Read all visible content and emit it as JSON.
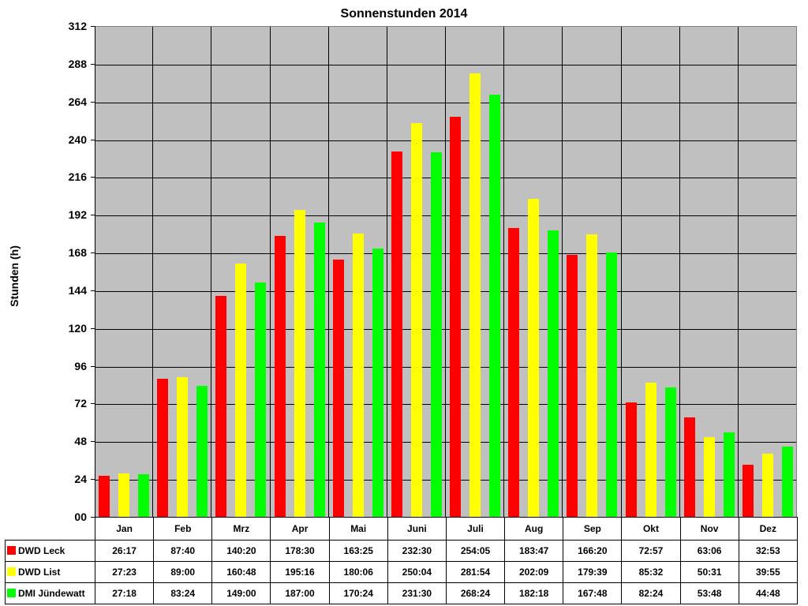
{
  "chart_data": {
    "type": "bar",
    "title": "Sonnenstunden 2014",
    "xlabel": "",
    "ylabel": "Stunden (h)",
    "ylim": [
      0,
      312
    ],
    "yticks": [
      "00",
      "24",
      "48",
      "72",
      "96",
      "120",
      "144",
      "168",
      "192",
      "216",
      "240",
      "264",
      "288",
      "312"
    ],
    "grid": true,
    "legend_position": "data-table-left",
    "categories": [
      "Jan",
      "Feb",
      "Mrz",
      "Apr",
      "Mai",
      "Juni",
      "Juli",
      "Aug",
      "Sep",
      "Okt",
      "Nov",
      "Dez"
    ],
    "series": [
      {
        "name": "DWD Leck",
        "color": "#ff0000",
        "labels": [
          "26:17",
          "87:40",
          "140:20",
          "178:30",
          "163:25",
          "232:30",
          "254:05",
          "183:47",
          "166:20",
          "72:57",
          "63:06",
          "32:53"
        ],
        "values": [
          26.28,
          87.67,
          140.33,
          178.5,
          163.42,
          232.5,
          254.08,
          183.78,
          166.33,
          72.95,
          63.1,
          32.88
        ]
      },
      {
        "name": "DWD List",
        "color": "#ffff00",
        "labels": [
          "27:23",
          "89:00",
          "160:48",
          "195:16",
          "180:06",
          "250:04",
          "281:54",
          "202:09",
          "179:39",
          "85:32",
          "50:31",
          "39:55"
        ],
        "values": [
          27.38,
          89.0,
          160.8,
          195.27,
          180.1,
          250.07,
          281.9,
          202.15,
          179.65,
          85.53,
          50.52,
          39.92
        ]
      },
      {
        "name": "DMI Jündewatt",
        "color": "#00ff00",
        "labels": [
          "27:18",
          "83:24",
          "149:00",
          "187:00",
          "170:24",
          "231:30",
          "268:24",
          "182:18",
          "167:48",
          "82:24",
          "53:48",
          "44:48"
        ],
        "values": [
          27.3,
          83.4,
          149.0,
          187.0,
          170.4,
          231.5,
          268.4,
          182.3,
          167.8,
          82.4,
          53.8,
          44.8
        ]
      }
    ]
  }
}
